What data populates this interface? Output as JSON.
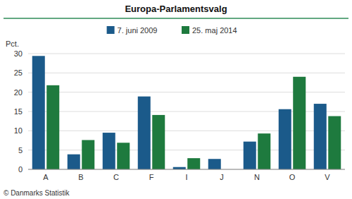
{
  "chart_data": {
    "type": "bar",
    "title": "Europa-Parlamentsvalg",
    "categories": [
      "A",
      "B",
      "C",
      "F",
      "I",
      "J",
      "N",
      "O",
      "V"
    ],
    "series": [
      {
        "name": "7. juni 2009",
        "color": "#1b5a8a",
        "values": [
          29.4,
          3.9,
          9.5,
          18.9,
          0.6,
          2.7,
          7.2,
          15.6,
          17.0
        ]
      },
      {
        "name": "25. maj 2014",
        "color": "#1e7a3e",
        "values": [
          21.8,
          7.6,
          6.9,
          14.1,
          2.9,
          0.0,
          9.3,
          24.0,
          13.8
        ]
      }
    ],
    "ylabel": "Pct.",
    "ylim": [
      0,
      30
    ],
    "yticks": [
      0,
      5,
      10,
      15,
      20,
      25,
      30
    ],
    "grid": true,
    "legend": "top",
    "annotations": [
      "© Danmarks Statistik"
    ]
  }
}
